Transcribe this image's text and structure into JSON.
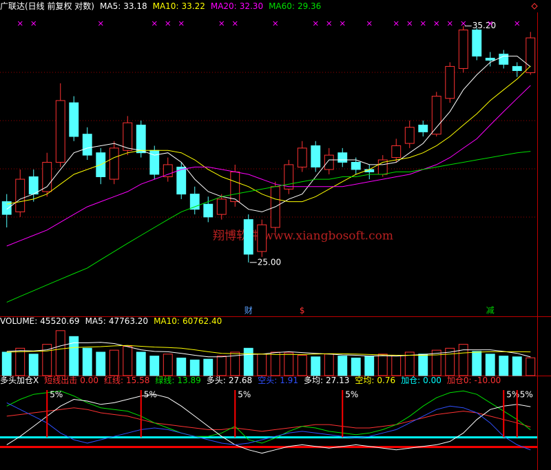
{
  "chart_data": [
    {
      "type": "candlestick",
      "title": "广联达(日线 前复权 对数)",
      "log_scale": true,
      "ylim": [
        23.45,
        35.9
      ],
      "up_color": "#ff3232",
      "down_color": "#54ffff",
      "open": [
        27.3,
        26.9,
        28.3,
        27.7,
        28.9,
        31.5,
        30.1,
        29.3,
        28.2,
        29.4,
        30.5,
        29.4,
        28.3,
        28.7,
        27.6,
        27.2,
        26.8,
        27.3,
        26.6,
        25.4,
        26.3,
        27.8,
        28.7,
        29.6,
        28.6,
        29.3,
        28.9,
        28.6,
        28.4,
        29.1,
        29.7,
        30.5,
        30.1,
        31.7,
        33.1,
        35.0,
        33.6,
        33.8,
        33.2,
        32.9
      ],
      "high": [
        27.6,
        28.6,
        28.6,
        29.3,
        32.4,
        31.8,
        30.4,
        29.5,
        29.8,
        30.9,
        30.7,
        29.6,
        29.1,
        28.9,
        27.9,
        27.5,
        27.6,
        28.8,
        26.8,
        26.6,
        28.1,
        29.0,
        29.8,
        29.8,
        29.5,
        29.5,
        29.1,
        28.8,
        29.2,
        29.9,
        30.7,
        30.7,
        32.0,
        33.4,
        35.2,
        35.1,
        33.9,
        34.0,
        33.4,
        34.9
      ],
      "low": [
        26.3,
        26.7,
        27.3,
        27.5,
        28.7,
        29.8,
        29.0,
        28.0,
        28.0,
        29.2,
        29.1,
        28.2,
        28.1,
        27.4,
        26.8,
        26.5,
        26.6,
        27.1,
        25.0,
        25.2,
        26.1,
        27.6,
        28.5,
        28.5,
        28.4,
        28.7,
        28.4,
        28.2,
        28.3,
        28.9,
        29.5,
        30.0,
        30.0,
        31.5,
        32.9,
        33.5,
        33.2,
        33.1,
        32.7,
        32.8
      ],
      "close": [
        26.8,
        28.2,
        27.6,
        28.9,
        31.6,
        30.0,
        29.2,
        28.3,
        29.5,
        30.6,
        29.3,
        28.4,
        28.8,
        27.6,
        27.0,
        26.7,
        27.4,
        28.5,
        25.3,
        26.4,
        27.9,
        28.8,
        29.5,
        28.7,
        29.2,
        28.9,
        28.6,
        28.5,
        29.0,
        29.6,
        30.4,
        30.2,
        31.8,
        33.2,
        35.0,
        33.7,
        33.5,
        33.3,
        33.0,
        34.6
      ],
      "series": [
        {
          "name": "MA5:",
          "legend_value": "33.18",
          "color": "#ffffff",
          "values": [
            27.0,
            27.4,
            27.6,
            27.9,
            28.6,
            29.3,
            29.5,
            29.6,
            29.7,
            29.5,
            29.4,
            29.2,
            29.3,
            28.9,
            28.2,
            27.7,
            27.5,
            27.4,
            27.0,
            26.9,
            27.1,
            27.4,
            27.6,
            28.3,
            29.0,
            29.0,
            29.0,
            28.8,
            28.8,
            28.9,
            29.3,
            29.7,
            30.4,
            31.1,
            32.1,
            32.8,
            33.4,
            33.7,
            33.7,
            33.18
          ]
        },
        {
          "name": "MA10:",
          "legend_value": "33.22",
          "color": "#ffff00",
          "values": [
            27.2,
            27.3,
            27.4,
            27.6,
            28.0,
            28.4,
            28.6,
            28.8,
            29.1,
            29.3,
            29.4,
            29.4,
            29.4,
            29.3,
            29.0,
            28.6,
            28.3,
            28.1,
            27.9,
            27.6,
            27.4,
            27.3,
            27.3,
            27.5,
            27.8,
            28.1,
            28.4,
            28.6,
            28.9,
            29.0,
            29.1,
            29.3,
            29.6,
            30.0,
            30.5,
            31.0,
            31.6,
            32.1,
            32.6,
            33.22
          ]
        },
        {
          "name": "MA20:",
          "legend_value": "32.30",
          "color": "#ff00ff",
          "values": [
            25.6,
            25.8,
            26.0,
            26.2,
            26.5,
            26.8,
            27.1,
            27.3,
            27.5,
            27.7,
            28.0,
            28.2,
            28.4,
            28.6,
            28.7,
            28.7,
            28.6,
            28.5,
            28.4,
            28.2,
            28.0,
            27.9,
            27.9,
            27.9,
            27.9,
            27.9,
            28.0,
            28.1,
            28.2,
            28.3,
            28.4,
            28.6,
            28.8,
            29.1,
            29.5,
            29.9,
            30.5,
            31.1,
            31.7,
            32.3
          ]
        },
        {
          "name": "MA60:",
          "legend_value": "29.36",
          "color": "#00e000",
          "values": [
            23.6,
            23.8,
            24.0,
            24.2,
            24.4,
            24.6,
            24.8,
            25.1,
            25.4,
            25.7,
            26.0,
            26.3,
            26.6,
            26.9,
            27.1,
            27.3,
            27.5,
            27.6,
            27.7,
            27.8,
            27.9,
            28.0,
            28.1,
            28.2,
            28.2,
            28.3,
            28.3,
            28.4,
            28.4,
            28.5,
            28.5,
            28.6,
            28.7,
            28.8,
            28.9,
            29.0,
            29.1,
            29.2,
            29.3,
            29.36
          ]
        }
      ],
      "high_label": {
        "index": 34,
        "value": 35.2,
        "label": "35.20"
      },
      "low_label": {
        "index": 18,
        "value": 25.0,
        "label": "25.00"
      },
      "top_markers": {
        "color": "#ff00ff",
        "indices": [
          1,
          2,
          7,
          11,
          12,
          13,
          16,
          17,
          20,
          23,
          24,
          25,
          27,
          29,
          30,
          31,
          32,
          33,
          34,
          36,
          38
        ]
      },
      "events": [
        {
          "index": 18,
          "label": "财",
          "color": "#5aa0ff"
        },
        {
          "index": 22,
          "label": "$",
          "color": "#ff3232"
        },
        {
          "index": 36,
          "label": "减",
          "color": "#00d000"
        }
      ],
      "watermark": "翔博软件 www.xiangbosoft.com"
    },
    {
      "type": "volume",
      "name": "VOLUME:",
      "current_label": "45520.69",
      "ylim": [
        0,
        127000
      ],
      "values": [
        60000,
        70000,
        55000,
        80000,
        115000,
        100000,
        70000,
        60000,
        65000,
        75000,
        60000,
        50000,
        55000,
        45000,
        40000,
        42000,
        50000,
        60000,
        70000,
        55000,
        60000,
        58000,
        52000,
        48000,
        55000,
        50000,
        45000,
        50000,
        55000,
        52000,
        60000,
        55000,
        65000,
        70000,
        80000,
        62000,
        55000,
        50000,
        48000,
        45520.69
      ],
      "series": [
        {
          "name": "MA5:",
          "legend_value": "47763.20",
          "color": "#ffffff",
          "values": [
            62000,
            64000,
            63000,
            66000,
            76000,
            84000,
            84000,
            85000,
            82000,
            74000,
            66000,
            62000,
            61000,
            57000,
            52000,
            48000,
            48000,
            51000,
            54000,
            55000,
            59000,
            61000,
            59000,
            57000,
            55000,
            53000,
            52000,
            50000,
            51000,
            50000,
            52000,
            54000,
            57000,
            60000,
            66000,
            66000,
            66000,
            62000,
            57000,
            47763.2
          ]
        },
        {
          "name": "MA10:",
          "legend_value": "60762.40",
          "color": "#ffff00",
          "values": [
            60000,
            61000,
            62000,
            63000,
            68000,
            72000,
            73000,
            74000,
            76000,
            77000,
            75000,
            73000,
            72000,
            70000,
            66000,
            61000,
            57000,
            56000,
            56000,
            55000,
            54000,
            54000,
            54000,
            55000,
            56000,
            56000,
            55000,
            54000,
            53000,
            52000,
            52000,
            52000,
            53000,
            55000,
            58000,
            60000,
            61000,
            61000,
            61000,
            60762.4
          ]
        }
      ]
    },
    {
      "type": "indicator",
      "title": "多头加仓X",
      "ylim": [
        -10,
        40
      ],
      "readouts": [
        {
          "name": "短线出击",
          "label": "0.00",
          "color": "#ff3232"
        },
        {
          "name": "红线:",
          "label": "15.58",
          "color": "#ff3232",
          "values": [
            22,
            23,
            24,
            25,
            26,
            27,
            26,
            24,
            23,
            22,
            20,
            18,
            17,
            16,
            15,
            14,
            14,
            15,
            14,
            13,
            14,
            15,
            16,
            17,
            17,
            16,
            15,
            15,
            16,
            17,
            19,
            21,
            23,
            24,
            25,
            24,
            22,
            20,
            18,
            15.58
          ]
        },
        {
          "name": "绿线:",
          "label": "13.89",
          "color": "#00e000",
          "values": [
            28,
            32,
            35,
            36,
            37,
            34,
            30,
            27,
            26,
            25,
            22,
            18,
            15,
            12,
            10,
            10,
            12,
            16,
            8,
            6,
            9,
            13,
            16,
            15,
            13,
            12,
            11,
            12,
            14,
            17,
            22,
            28,
            33,
            36,
            37,
            35,
            30,
            25,
            20,
            13.89
          ]
        },
        {
          "name": "多头:",
          "label": "27.68",
          "color": "#ffffff",
          "values": [
            5,
            10,
            16,
            22,
            28,
            32,
            31,
            29,
            30,
            32,
            34,
            35,
            33,
            28,
            22,
            16,
            10,
            5,
            2,
            0,
            2,
            4,
            5,
            4,
            3,
            4,
            5,
            4,
            3,
            2,
            3,
            4,
            5,
            7,
            12,
            20,
            26,
            28,
            29,
            27.68
          ]
        },
        {
          "name": "空头:",
          "label": "1.91",
          "color": "#3050ff",
          "values": [
            30,
            26,
            22,
            18,
            12,
            8,
            6,
            8,
            10,
            12,
            14,
            15,
            14,
            12,
            10,
            8,
            6,
            5,
            6,
            8,
            10,
            12,
            13,
            12,
            11,
            10,
            9,
            10,
            12,
            14,
            18,
            22,
            26,
            28,
            27,
            24,
            18,
            10,
            5,
            1.91
          ]
        },
        {
          "name": "多均:",
          "label": "27.13",
          "color": "#ffffff"
        },
        {
          "name": "空均:",
          "label": "0.76",
          "color": "#ffff00"
        },
        {
          "name": "加仓:",
          "label": "0.00",
          "color": "#00ffff"
        },
        {
          "name": "加仓0:",
          "label": "-10.00",
          "color": "#ff3232"
        }
      ],
      "hlines": [
        {
          "value": 9.4,
          "color": "#00ffff"
        },
        {
          "value": 3.7,
          "color": "#ff0000"
        }
      ],
      "signals": {
        "color": "#ff0000",
        "indices": [
          3,
          10,
          17,
          25,
          37,
          38
        ],
        "labels": [
          "5%",
          "5%",
          "5%",
          "5%",
          "5%",
          "5%"
        ]
      }
    }
  ]
}
